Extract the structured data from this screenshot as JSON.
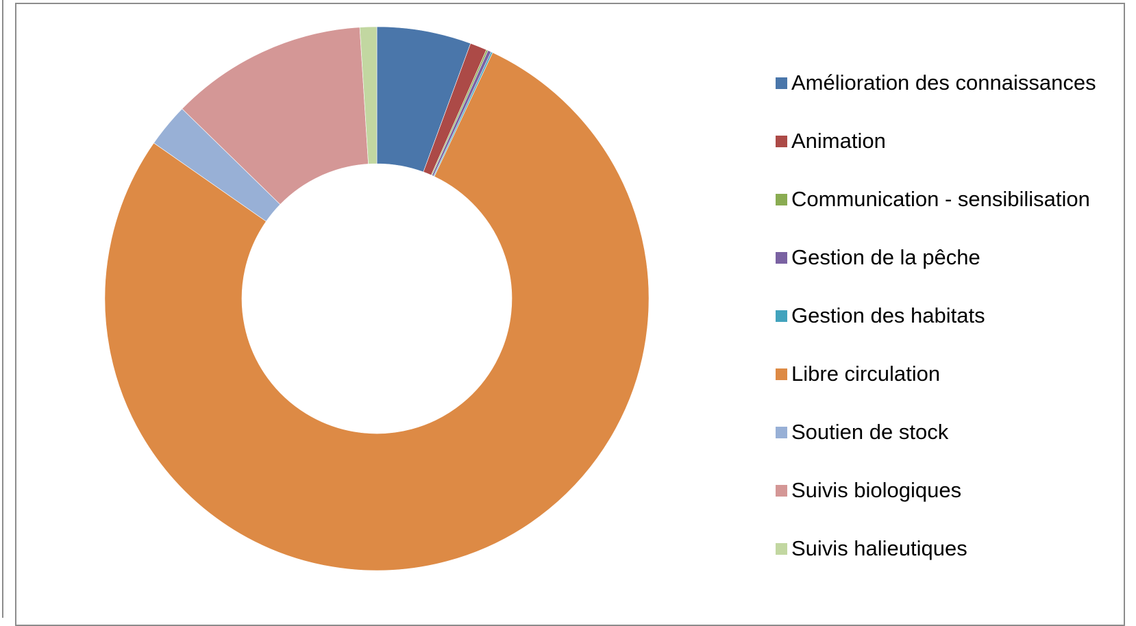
{
  "chart_data": {
    "type": "pie",
    "variant": "donut",
    "title": "",
    "legend_position": "right",
    "categories": [
      "Amélioration des connaissances",
      "Animation",
      "Communication - sensibilisation",
      "Gestion de la pêche",
      "Gestion des habitats",
      "Libre circulation",
      "Soutien de stock",
      "Suivis biologiques",
      "Suivis halieutiques"
    ],
    "values": [
      5.6,
      1.0,
      0.1,
      0.2,
      0.1,
      77.7,
      2.6,
      11.7,
      1.0
    ],
    "unit": "%",
    "colors": [
      "#4a76aa",
      "#ac4a47",
      "#8aac52",
      "#7a62a2",
      "#42a3bd",
      "#dd8a45",
      "#98b0d6",
      "#d49796",
      "#c2d7a1"
    ]
  }
}
